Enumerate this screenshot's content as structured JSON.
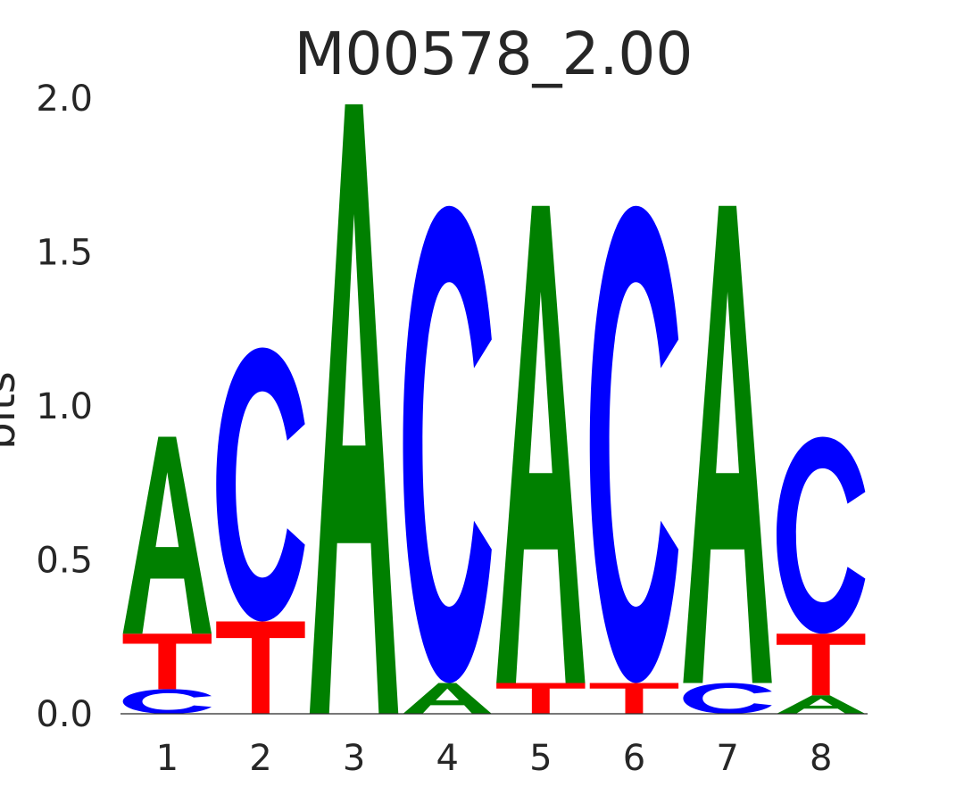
{
  "chart_data": {
    "type": "sequence-logo",
    "title": "M00578_2.00",
    "ylabel": "bits",
    "xlabel": "",
    "ylim": [
      0,
      2.0
    ],
    "y_ticks": [
      "0.0",
      "0.5",
      "1.0",
      "1.5",
      "2.0"
    ],
    "grid": false,
    "colors": {
      "A": "#008000",
      "C": "#0000ff",
      "G": "#ffa500",
      "T": "#ff0000"
    },
    "positions": [
      {
        "label": "1",
        "stack": [
          {
            "letter": "C",
            "bits": 0.08
          },
          {
            "letter": "T",
            "bits": 0.18
          },
          {
            "letter": "A",
            "bits": 0.64
          }
        ]
      },
      {
        "label": "2",
        "stack": [
          {
            "letter": "T",
            "bits": 0.3
          },
          {
            "letter": "C",
            "bits": 0.89
          }
        ]
      },
      {
        "label": "3",
        "stack": [
          {
            "letter": "A",
            "bits": 1.98
          }
        ]
      },
      {
        "label": "4",
        "stack": [
          {
            "letter": "A",
            "bits": 0.1
          },
          {
            "letter": "C",
            "bits": 1.55
          }
        ]
      },
      {
        "label": "5",
        "stack": [
          {
            "letter": "T",
            "bits": 0.1
          },
          {
            "letter": "A",
            "bits": 1.55
          }
        ]
      },
      {
        "label": "6",
        "stack": [
          {
            "letter": "T",
            "bits": 0.1
          },
          {
            "letter": "C",
            "bits": 1.55
          }
        ]
      },
      {
        "label": "7",
        "stack": [
          {
            "letter": "C",
            "bits": 0.1
          },
          {
            "letter": "A",
            "bits": 1.55
          }
        ]
      },
      {
        "label": "8",
        "stack": [
          {
            "letter": "A",
            "bits": 0.06
          },
          {
            "letter": "T",
            "bits": 0.2
          },
          {
            "letter": "C",
            "bits": 0.64
          }
        ]
      }
    ]
  }
}
